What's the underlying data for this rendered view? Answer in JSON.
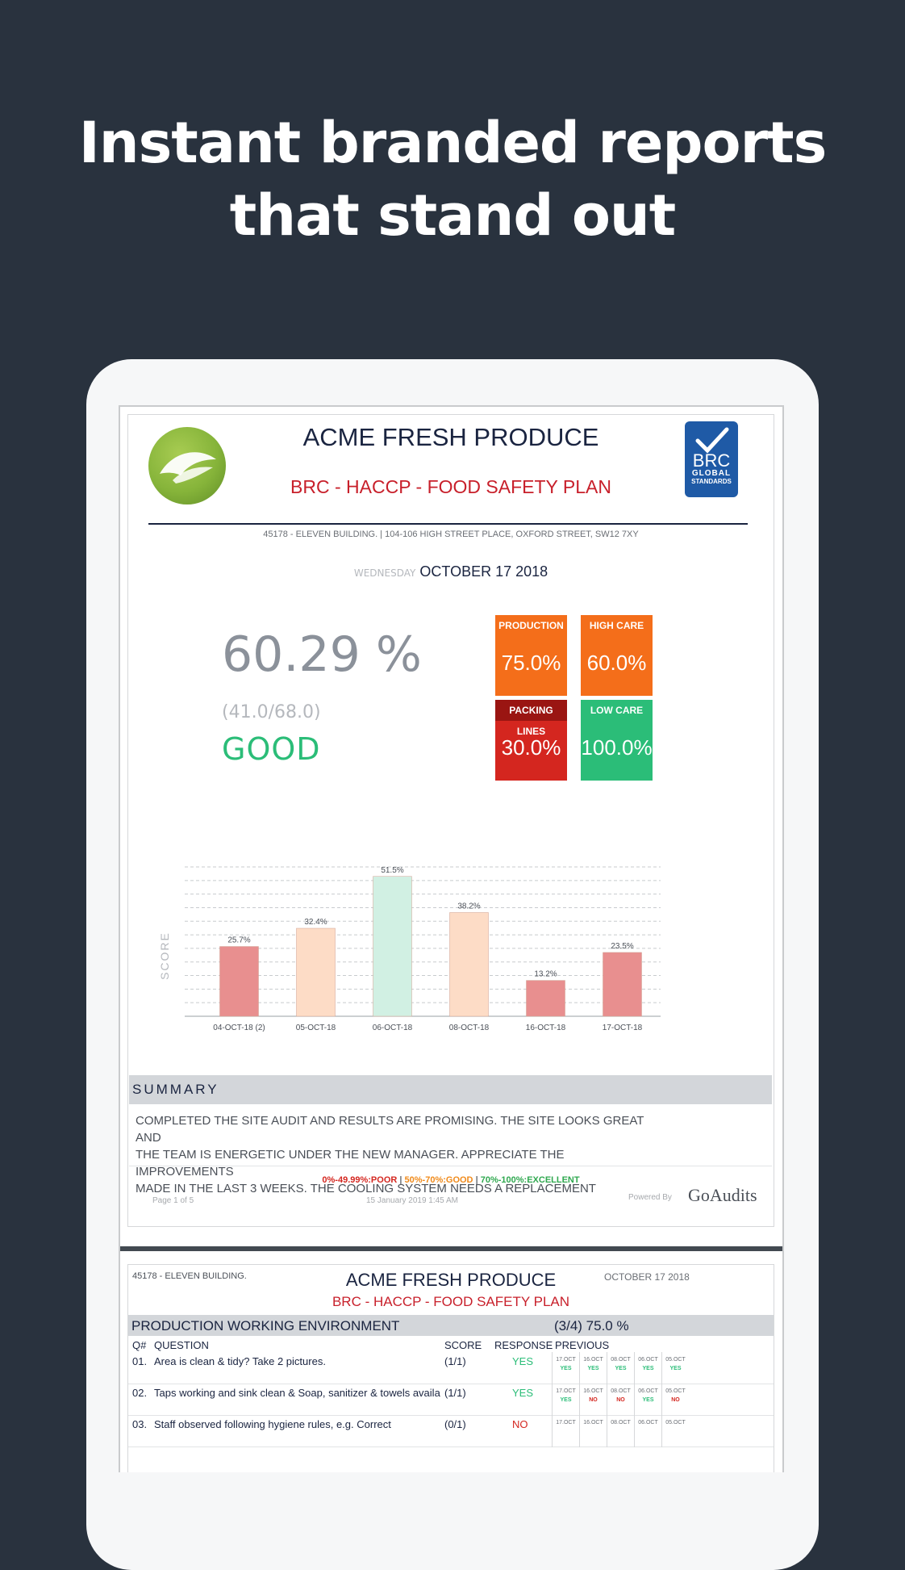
{
  "headline": {
    "line1": "Instant branded reports",
    "line2": "that stand out"
  },
  "report": {
    "company": "ACME FRESH PRODUCE",
    "plan_title": "BRC - HACCP - FOOD SAFETY PLAN",
    "brc_logo": {
      "line1": "BRC",
      "line2": "GLOBAL",
      "line3": "STANDARDS"
    },
    "address": "45178 - ELEVEN BUILDING.  |  104-106 HIGH STREET PLACE, OXFORD STREET, SW12 7XY",
    "weekday": "WEDNESDAY",
    "date": "OCTOBER 17 2018",
    "score_percent": "60.29 %",
    "score_fraction": "(41.0/68.0)",
    "rating": "GOOD",
    "tiles": [
      {
        "label": "PRODUCTION",
        "value": "75.0%",
        "color": "#f46e1a"
      },
      {
        "label": "HIGH CARE",
        "value": "60.0%",
        "color": "#f46e1a"
      },
      {
        "label": "PACKING LINES",
        "value": "30.0%",
        "color": "#d4261f"
      },
      {
        "label": "LOW CARE",
        "value": "100.0%",
        "color": "#2bbd78"
      }
    ],
    "summary_title": "SUMMARY",
    "summary_lines": [
      "COMPLETED THE SITE AUDIT AND RESULTS ARE PROMISING. THE SITE LOOKS GREAT AND",
      "THE TEAM IS ENERGETIC UNDER THE NEW MANAGER. APPRECIATE THE IMPROVEMENTS",
      "MADE IN THE LAST 3 WEEKS. THE COOLING SYSTEM NEEDS A REPLACEMENT"
    ],
    "legend": {
      "poor": "0%-49.99%:POOR",
      "good": "50%-70%:GOOD",
      "excellent": "70%-100%:EXCELLENT",
      "sep": "|",
      "colors": {
        "poor": "#d4261f",
        "good": "#f08a1a",
        "excellent": "#2fa84f"
      }
    },
    "page_label": "Page 1 of 5",
    "generated": "15 January 2019 1:45 AM",
    "powered_by": "Powered By",
    "brand": "GoAudits"
  },
  "chart_data": {
    "type": "bar",
    "ylabel": "SCORE",
    "categories": [
      "04-OCT-18 (2)",
      "05-OCT-18",
      "06-OCT-18",
      "08-OCT-18",
      "16-OCT-18",
      "17-OCT-18"
    ],
    "values": [
      25.7,
      32.4,
      51.5,
      38.2,
      13.2,
      23.5
    ],
    "labels": [
      "25.7%",
      "32.4%",
      "51.5%",
      "38.2%",
      "13.2%",
      "23.5%"
    ],
    "colors": [
      "#e88f8f",
      "#fddcc6",
      "#d1f0e3",
      "#fddcc6",
      "#e88f8f",
      "#e88f8f"
    ],
    "ylim": [
      0,
      55
    ],
    "grid": true
  },
  "page2": {
    "site": "45178 - ELEVEN BUILDING.",
    "company": "ACME FRESH PRODUCE",
    "date": "OCTOBER 17 2018",
    "plan_title": "BRC - HACCP - FOOD SAFETY PLAN",
    "section": "PRODUCTION WORKING ENVIRONMENT",
    "section_score": "(3/4) 75.0 %",
    "headers": {
      "q": "Q#",
      "question": "QUESTION",
      "score": "SCORE",
      "response": "RESPONSE",
      "previous": "PREVIOUS"
    },
    "prev_dates": [
      "17.OCT",
      "16.OCT",
      "08.OCT",
      "06.OCT",
      "05.OCT"
    ],
    "rows": [
      {
        "num": "01.",
        "question": "Area is clean & tidy? Take 2 pictures.",
        "score": "(1/1)",
        "response": "YES",
        "prev": [
          "YES",
          "YES",
          "YES",
          "YES",
          "YES"
        ]
      },
      {
        "num": "02.",
        "question": "Taps working and sink clean & Soap, sanitizer & towels available.",
        "score": "(1/1)",
        "response": "YES",
        "prev": [
          "YES",
          "NO",
          "NO",
          "YES",
          "NO"
        ]
      },
      {
        "num": "03.",
        "question": "Staff observed following hygiene rules, e.g. Correct",
        "score": "(0/1)",
        "response": "NO",
        "prev": [
          "",
          "",
          "",
          "",
          ""
        ]
      }
    ]
  }
}
